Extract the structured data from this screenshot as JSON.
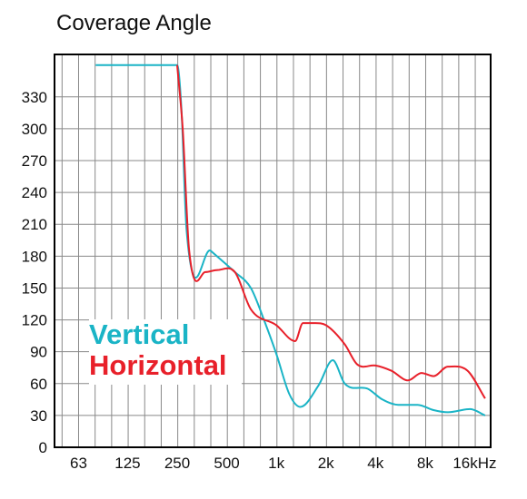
{
  "chart_data": {
    "type": "line",
    "title": "Coverage Angle",
    "xlabel": "",
    "ylabel": "",
    "x_scale": "log",
    "xlim": [
      45,
      20000
    ],
    "ylim": [
      0,
      370
    ],
    "y_ticks": [
      0,
      30,
      60,
      90,
      120,
      150,
      180,
      210,
      240,
      270,
      300,
      330
    ],
    "x_ticks": [
      {
        "value": 63,
        "label": "63"
      },
      {
        "value": 125,
        "label": "125"
      },
      {
        "value": 250,
        "label": "250"
      },
      {
        "value": 500,
        "label": "500"
      },
      {
        "value": 1000,
        "label": "1k"
      },
      {
        "value": 2000,
        "label": "2k"
      },
      {
        "value": 4000,
        "label": "4k"
      },
      {
        "value": 8000,
        "label": "8k"
      },
      {
        "value": 16000,
        "label": "16kHz"
      }
    ],
    "grid": true,
    "legend_position": "lower-left",
    "series": [
      {
        "name": "Vertical",
        "color": "#1ab4c6",
        "points": [
          [
            80,
            360
          ],
          [
            250,
            360
          ],
          [
            265,
            320
          ],
          [
            285,
            205
          ],
          [
            400,
            185
          ],
          [
            560,
            165
          ],
          [
            700,
            150
          ],
          [
            850,
            118
          ],
          [
            1000,
            88
          ],
          [
            1200,
            50
          ],
          [
            1400,
            38
          ],
          [
            1800,
            58
          ],
          [
            2200,
            82
          ],
          [
            2600,
            60
          ],
          [
            3600,
            55
          ],
          [
            4400,
            45
          ],
          [
            5500,
            40
          ],
          [
            7200,
            40
          ],
          [
            9000,
            35
          ],
          [
            11000,
            33
          ],
          [
            15000,
            36
          ],
          [
            18500,
            30
          ]
        ]
      },
      {
        "name": "Horizontal",
        "color": "#e8202a",
        "points": [
          [
            250,
            360
          ],
          [
            270,
            300
          ],
          [
            295,
            187
          ],
          [
            370,
            165
          ],
          [
            440,
            167
          ],
          [
            560,
            165
          ],
          [
            700,
            130
          ],
          [
            1000,
            115
          ],
          [
            1300,
            100
          ],
          [
            1450,
            117
          ],
          [
            1700,
            117
          ],
          [
            2000,
            115
          ],
          [
            2600,
            97
          ],
          [
            3100,
            78
          ],
          [
            4000,
            77
          ],
          [
            5000,
            72
          ],
          [
            6300,
            63
          ],
          [
            7600,
            70
          ],
          [
            9000,
            67
          ],
          [
            11000,
            76
          ],
          [
            14500,
            72
          ],
          [
            18500,
            46
          ]
        ]
      }
    ]
  }
}
